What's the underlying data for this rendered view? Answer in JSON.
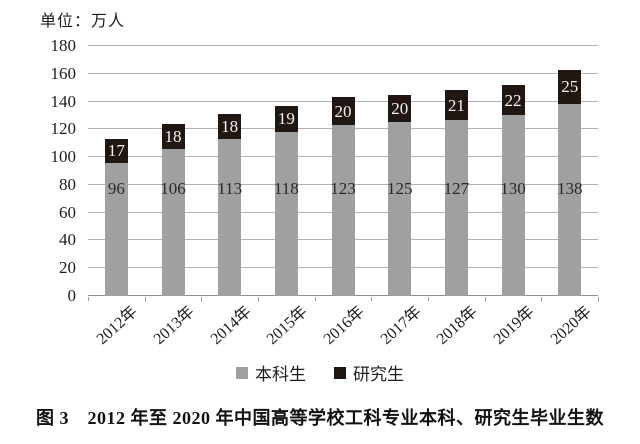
{
  "figure": {
    "unit_label": "单位：万人",
    "caption": "图 3　2012 年至 2020 年中国高等学校工科专业本科、研究生毕业生数"
  },
  "chart_data": {
    "type": "bar",
    "stacked": true,
    "title": "",
    "unit_label": "单位：万人",
    "categories": [
      "2012年",
      "2013年",
      "2014年",
      "2015年",
      "2016年",
      "2017年",
      "2018年",
      "2019年",
      "2020年"
    ],
    "series": [
      {
        "name": "本科生",
        "color": "#a0a0a0",
        "label_color": "#2c2825",
        "values": [
          96,
          106,
          113,
          118,
          123,
          125,
          127,
          130,
          138
        ]
      },
      {
        "name": "研究生",
        "color": "#211712",
        "label_color": "#f5f3f0",
        "values": [
          17,
          18,
          18,
          19,
          20,
          20,
          21,
          22,
          25
        ]
      }
    ],
    "ylim": [
      0,
      180
    ],
    "y_ticks": [
      0,
      20,
      40,
      60,
      80,
      100,
      120,
      140,
      160,
      180
    ],
    "grid": true,
    "legend_position": "bottom"
  }
}
